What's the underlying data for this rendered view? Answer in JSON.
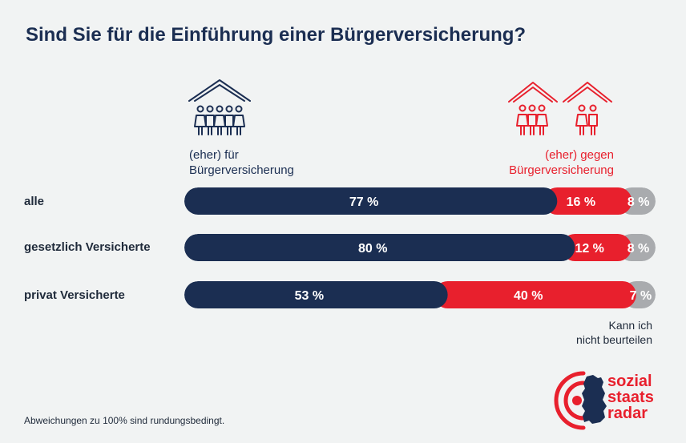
{
  "title": "Sind Sie für die Einführung einer Bürgerversicherung?",
  "legend": {
    "for_line1": "(eher) für",
    "for_line2": "Bürgerversicherung",
    "against_line1": "(eher) gegen",
    "against_line2": "Bürgerversicherung",
    "cant_line1": "Kann ich",
    "cant_line2": "nicht beurteilen"
  },
  "colors": {
    "for": "#1b2e52",
    "against": "#e8202d",
    "cant": "#a9abae",
    "background": "#f1f3f3"
  },
  "icons": {
    "for": "house-family-icon",
    "against": "house-family-icon"
  },
  "chart_data": {
    "type": "bar",
    "orientation": "horizontal",
    "stacked": true,
    "title": "Sind Sie für die Einführung einer Bürgerversicherung?",
    "categories": [
      "alle",
      "gesetzlich Versicherte",
      "privat Versicherte"
    ],
    "series": [
      {
        "name": "(eher) für Bürgerversicherung",
        "values": [
          77,
          80,
          53
        ],
        "labels": [
          "77 %",
          "80 %",
          "53 %"
        ]
      },
      {
        "name": "(eher) gegen Bürgerversicherung",
        "values": [
          16,
          12,
          40
        ],
        "labels": [
          "16 %",
          "12 %",
          "40 %"
        ]
      },
      {
        "name": "Kann ich nicht beurteilen",
        "values": [
          8,
          8,
          7
        ],
        "labels": [
          "8 %",
          "8 %",
          "7 %"
        ]
      }
    ],
    "legend_position": "top",
    "grid": false
  },
  "footnote": "Abweichungen zu 100% sind rundungsbedingt.",
  "logo": {
    "line1": "sozial",
    "line2": "staats",
    "line3": "radar"
  }
}
